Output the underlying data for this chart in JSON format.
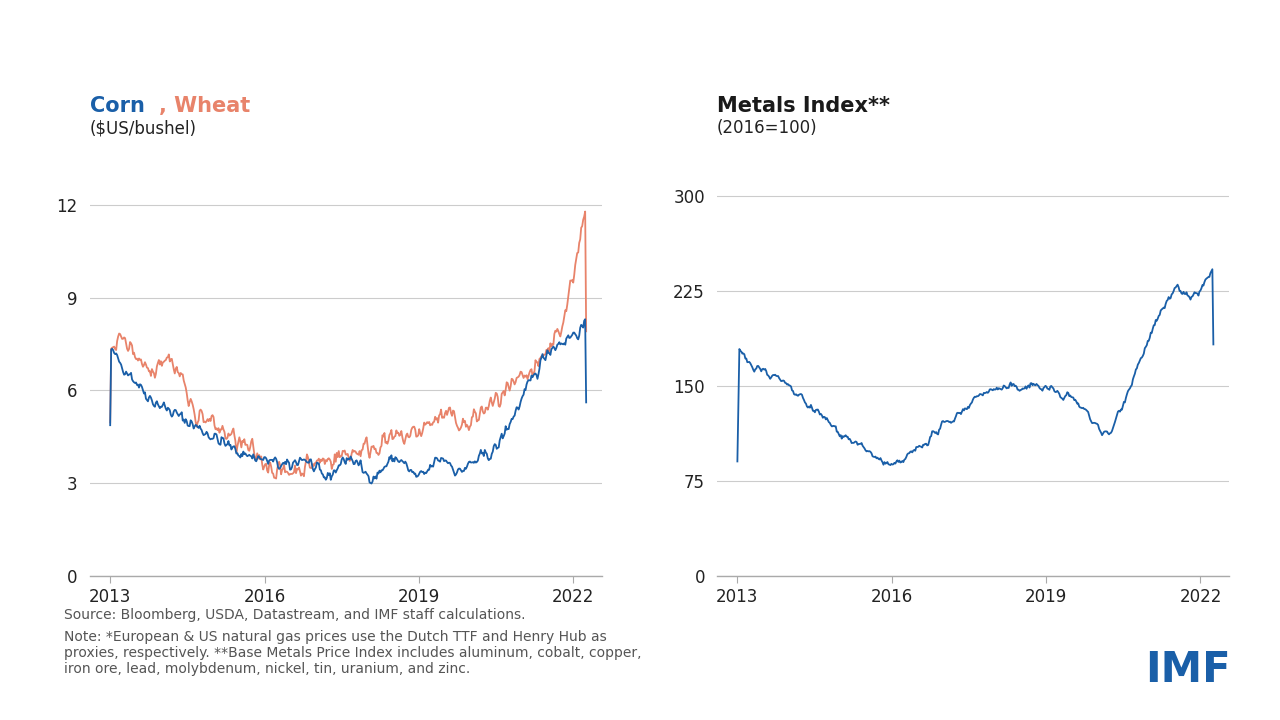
{
  "left_title_corn": "Corn",
  "left_title_comma_wheat": ", Wheat",
  "left_subtitle": "($US/bushel)",
  "right_title": "Metals Index**",
  "right_subtitle": "(2016=100)",
  "corn_color": "#1a5fa8",
  "wheat_color": "#e8836a",
  "metals_color": "#1a5fa8",
  "bg_color": "#ffffff",
  "grid_color": "#cccccc",
  "text_color": "#222222",
  "footnote_color": "#555555",
  "source_text": "Source: Bloomberg, USDA, Datastream, and IMF staff calculations.",
  "note_text": "Note: *European & US natural gas prices use the Dutch TTF and Henry Hub as\nproxies, respectively. **Base Metals Price Index includes aluminum, cobalt, copper,\niron ore, lead, molybdenum, nickel, tin, uranium, and zinc.",
  "left_yticks": [
    0,
    3,
    6,
    9,
    12
  ],
  "left_ylim": [
    0,
    13.5
  ],
  "right_yticks": [
    0,
    75,
    150,
    225,
    300
  ],
  "right_ylim": [
    0,
    330
  ],
  "xticks": [
    2013,
    2016,
    2019,
    2022
  ],
  "xlim": [
    2012.6,
    2022.55
  ]
}
